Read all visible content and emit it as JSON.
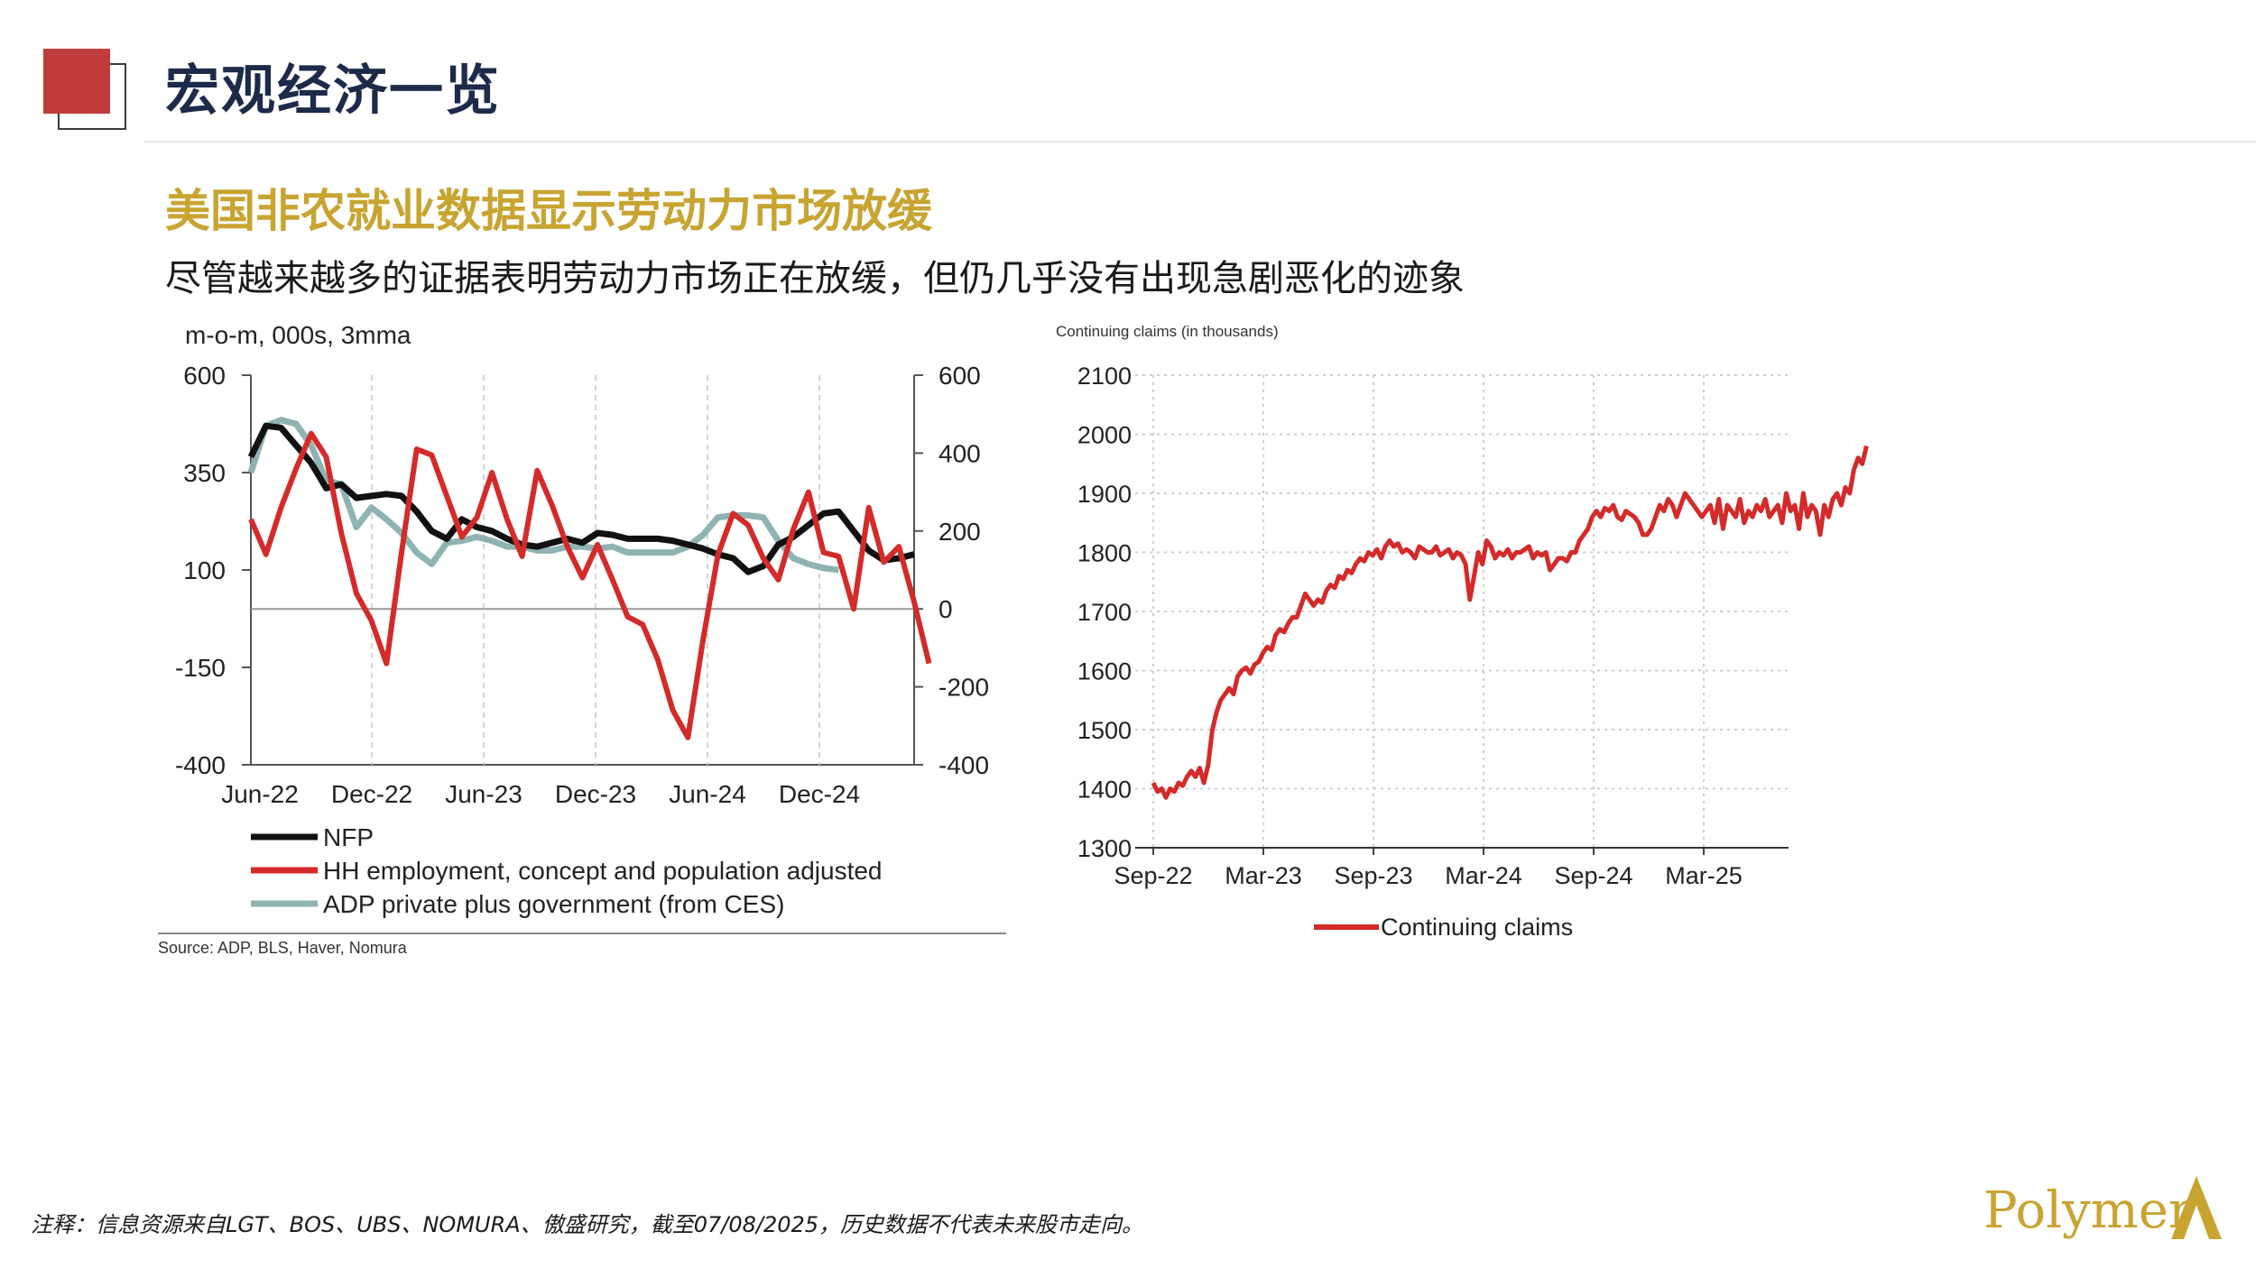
{
  "header": {
    "title": "宏观经济一览",
    "headline": "美国非农就业数据显示劳动力市场放缓",
    "subhead": "尽管越来越多的证据表明劳动力市场正在放缓，但仍几乎没有出现急剧恶化的迹象"
  },
  "colors": {
    "brand_red": "#c23b3b",
    "gold": "#c8a431",
    "navy": "#1d2b4a",
    "nfp": "#111111",
    "hh": "#d42a2a",
    "adp": "#8fb3b3",
    "claims": "#d42a2a"
  },
  "chart_data": [
    {
      "type": "line",
      "title": "m-o-m, 000s, 3mma",
      "x_ticks": [
        "Jun-22",
        "Dec-22",
        "Jun-23",
        "Dec-23",
        "Jun-24",
        "Dec-24"
      ],
      "x_start": "2022-04",
      "left_axis": {
        "ticks": [
          "600",
          "350",
          "100",
          "-150",
          "-400"
        ],
        "ylim": [
          -400,
          600
        ]
      },
      "right_axis": {
        "ticks": [
          "600",
          "400",
          "200",
          "0",
          "-200",
          "-400"
        ],
        "ylim": [
          -400,
          600
        ]
      },
      "zero_line": 0,
      "grid": "vertical-dashed",
      "legend_position": "bottom-left",
      "series": [
        {
          "name": "NFP",
          "values": [
            390,
            470,
            465,
            420,
            375,
            310,
            320,
            285,
            290,
            295,
            290,
            250,
            200,
            180,
            230,
            210,
            200,
            180,
            165,
            160,
            170,
            180,
            170,
            195,
            190,
            180,
            180,
            180,
            175,
            165,
            155,
            140,
            130,
            95,
            110,
            165,
            185,
            215,
            245,
            250,
            200,
            150,
            125,
            130,
            140
          ]
        },
        {
          "name": "HH employment, concept and population adjusted",
          "values": [
            230,
            140,
            260,
            360,
            450,
            390,
            195,
            40,
            -30,
            -140,
            145,
            410,
            395,
            290,
            185,
            235,
            350,
            230,
            135,
            355,
            265,
            160,
            80,
            165,
            75,
            -20,
            -40,
            -130,
            -260,
            -330,
            -80,
            140,
            245,
            215,
            130,
            75,
            205,
            300,
            145,
            135,
            0,
            260,
            120,
            160,
            20,
            -140
          ]
        },
        {
          "name": "ADP private plus government (from CES)",
          "values": [
            350,
            470,
            485,
            475,
            420,
            330,
            320,
            210,
            260,
            230,
            195,
            145,
            115,
            170,
            175,
            185,
            175,
            160,
            160,
            150,
            150,
            160,
            160,
            155,
            160,
            145,
            145,
            145,
            145,
            160,
            190,
            235,
            240,
            240,
            235,
            175,
            130,
            115,
            105,
            100
          ]
        }
      ],
      "source": "Source: ADP, BLS, Haver, Nomura"
    },
    {
      "type": "line",
      "title": "Continuing claims (in thousands)",
      "x_ticks": [
        "Sep-22",
        "Mar-23",
        "Sep-23",
        "Mar-24",
        "Sep-24",
        "Mar-25"
      ],
      "x_start": "2022-09",
      "y_ticks": [
        "2100",
        "2000",
        "1900",
        "1800",
        "1700",
        "1600",
        "1500",
        "1400",
        "1300"
      ],
      "ylim": [
        1300,
        2100
      ],
      "grid": "dotted",
      "legend_position": "bottom-center",
      "series": [
        {
          "name": "Continuing claims",
          "values": [
            1410,
            1395,
            1400,
            1385,
            1400,
            1395,
            1410,
            1405,
            1420,
            1430,
            1420,
            1435,
            1410,
            1440,
            1500,
            1530,
            1550,
            1560,
            1570,
            1560,
            1590,
            1600,
            1605,
            1595,
            1610,
            1615,
            1630,
            1640,
            1635,
            1660,
            1670,
            1665,
            1680,
            1690,
            1690,
            1710,
            1730,
            1720,
            1710,
            1720,
            1715,
            1735,
            1745,
            1740,
            1760,
            1755,
            1770,
            1765,
            1780,
            1790,
            1785,
            1800,
            1795,
            1805,
            1790,
            1810,
            1820,
            1810,
            1815,
            1800,
            1805,
            1800,
            1790,
            1810,
            1805,
            1800,
            1800,
            1810,
            1795,
            1800,
            1805,
            1790,
            1800,
            1795,
            1780,
            1720,
            1760,
            1800,
            1780,
            1820,
            1810,
            1790,
            1800,
            1795,
            1805,
            1790,
            1800,
            1800,
            1805,
            1810,
            1790,
            1800,
            1795,
            1800,
            1770,
            1780,
            1790,
            1790,
            1785,
            1800,
            1800,
            1820,
            1830,
            1840,
            1860,
            1870,
            1860,
            1875,
            1870,
            1880,
            1860,
            1855,
            1870,
            1865,
            1860,
            1850,
            1830,
            1830,
            1840,
            1860,
            1880,
            1870,
            1890,
            1880,
            1860,
            1880,
            1900,
            1890,
            1880,
            1870,
            1860,
            1870,
            1880,
            1850,
            1890,
            1840,
            1880,
            1870,
            1860,
            1890,
            1850,
            1870,
            1860,
            1880,
            1870,
            1890,
            1860,
            1870,
            1880,
            1850,
            1900,
            1870,
            1880,
            1840,
            1900,
            1860,
            1880,
            1870,
            1830,
            1880,
            1860,
            1890,
            1900,
            1880,
            1910,
            1900,
            1940,
            1960,
            1950,
            1980
          ]
        }
      ]
    }
  ],
  "footer": {
    "note": "注释：信息资源来自LGT、BOS、UBS、NOMURA、傲盛研究，截至07/08/2025，历史数据不代表未来股市走向。",
    "brand": "Polymer"
  }
}
